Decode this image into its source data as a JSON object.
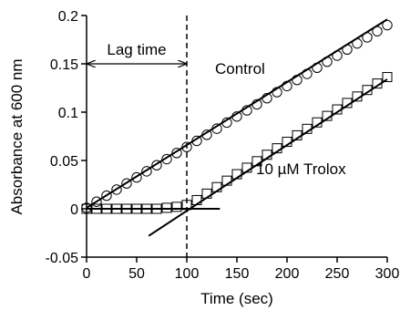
{
  "chart_data": {
    "type": "scatter",
    "title": "",
    "xlabel": "Time (sec)",
    "ylabel": "Absorbance at 600 nm",
    "xlim": [
      0,
      300
    ],
    "ylim": [
      -0.05,
      0.2
    ],
    "x_ticks": [
      "0",
      "50",
      "100",
      "150",
      "200",
      "250",
      "300"
    ],
    "y_ticks": [
      "-0.05",
      "0",
      "0.05",
      "0.1",
      "0.15",
      "0.2"
    ],
    "grid": false,
    "series": [
      {
        "name": "Control",
        "marker": "circle",
        "x": [
          0,
          10,
          20,
          30,
          40,
          50,
          60,
          70,
          80,
          90,
          100,
          110,
          120,
          130,
          140,
          150,
          160,
          170,
          180,
          190,
          200,
          210,
          220,
          230,
          240,
          250,
          260,
          270,
          280,
          290,
          300
        ],
        "y": [
          0.001,
          0.0073,
          0.0136,
          0.0199,
          0.0262,
          0.0325,
          0.0388,
          0.0451,
          0.0514,
          0.0577,
          0.064,
          0.0703,
          0.0766,
          0.0829,
          0.0892,
          0.0955,
          0.1018,
          0.1081,
          0.1144,
          0.1207,
          0.127,
          0.1333,
          0.1396,
          0.1459,
          0.1522,
          0.1585,
          0.1648,
          0.1711,
          0.1774,
          0.1837,
          0.19
        ],
        "fit": {
          "x": [
            0,
            300
          ],
          "y": [
            0.001,
            0.196
          ]
        }
      },
      {
        "name": "10 µM Trolox",
        "marker": "square",
        "x": [
          0,
          10,
          20,
          30,
          40,
          50,
          60,
          70,
          80,
          90,
          100,
          110,
          120,
          130,
          140,
          150,
          160,
          170,
          180,
          190,
          200,
          210,
          220,
          230,
          240,
          250,
          260,
          270,
          280,
          290,
          300
        ],
        "y": [
          0,
          0,
          0,
          0,
          0,
          0,
          0,
          0,
          0.001,
          0.002,
          0.004,
          0.009,
          0.0157,
          0.0224,
          0.0291,
          0.0358,
          0.0425,
          0.0492,
          0.0559,
          0.0626,
          0.0693,
          0.076,
          0.0827,
          0.0894,
          0.0961,
          0.1028,
          0.1095,
          0.1162,
          0.1229,
          0.1296,
          0.1363
        ],
        "fit": {
          "x": [
            62,
            300
          ],
          "y": [
            -0.028,
            0.134
          ]
        },
        "baseline": {
          "x": [
            0,
            133
          ],
          "y": [
            0,
            0
          ]
        }
      }
    ],
    "annotations": {
      "lag_time_label": "Lag time",
      "lag_time_range": [
        0,
        100
      ],
      "lag_time_y": 0.15,
      "lag_marker_x": 100,
      "control_label": "Control",
      "trolox_label": "10 µM Trolox"
    },
    "colors": {
      "ink": "#000000",
      "background": "#ffffff"
    }
  }
}
